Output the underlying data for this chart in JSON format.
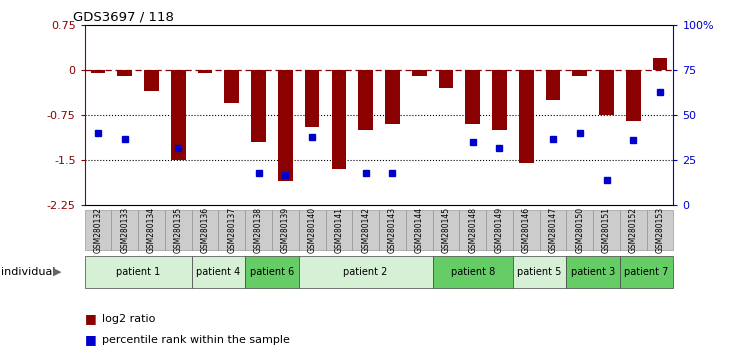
{
  "title": "GDS3697 / 118",
  "samples": [
    "GSM280132",
    "GSM280133",
    "GSM280134",
    "GSM280135",
    "GSM280136",
    "GSM280137",
    "GSM280138",
    "GSM280139",
    "GSM280140",
    "GSM280141",
    "GSM280142",
    "GSM280143",
    "GSM280144",
    "GSM280145",
    "GSM280148",
    "GSM280149",
    "GSM280146",
    "GSM280147",
    "GSM280150",
    "GSM280151",
    "GSM280152",
    "GSM280153"
  ],
  "log2_ratio": [
    -0.05,
    -0.1,
    -0.35,
    -1.5,
    -0.05,
    -0.55,
    -1.2,
    -1.85,
    -0.95,
    -1.65,
    -1.0,
    -0.9,
    -0.1,
    -0.3,
    -0.9,
    -1.0,
    -1.55,
    -0.5,
    -0.1,
    -0.75,
    -0.85,
    0.2
  ],
  "percentile": [
    40,
    37,
    null,
    32,
    null,
    null,
    18,
    17,
    38,
    null,
    18,
    18,
    null,
    null,
    35,
    32,
    null,
    37,
    40,
    14,
    36,
    63
  ],
  "ylim_left": [
    -2.25,
    0.75
  ],
  "ylim_right": [
    0,
    100
  ],
  "yticks_left": [
    0.75,
    0,
    -0.75,
    -1.5,
    -2.25
  ],
  "yticks_right": [
    100,
    75,
    50,
    25,
    0
  ],
  "ytick_labels_right": [
    "100%",
    "75",
    "50",
    "25",
    "0"
  ],
  "hlines_dotted": [
    -0.75,
    -1.5
  ],
  "hline_dashed": 0,
  "bar_color": "#8B0000",
  "dot_color": "#0000CD",
  "patient_groups": [
    {
      "label": "patient 1",
      "start": 0,
      "end": 4,
      "color": "#d6f0d6"
    },
    {
      "label": "patient 4",
      "start": 4,
      "end": 6,
      "color": "#d6f0d6"
    },
    {
      "label": "patient 6",
      "start": 6,
      "end": 8,
      "color": "#66cc66"
    },
    {
      "label": "patient 2",
      "start": 8,
      "end": 13,
      "color": "#d6f0d6"
    },
    {
      "label": "patient 8",
      "start": 13,
      "end": 16,
      "color": "#66cc66"
    },
    {
      "label": "patient 5",
      "start": 16,
      "end": 18,
      "color": "#d6f0d6"
    },
    {
      "label": "patient 3",
      "start": 18,
      "end": 20,
      "color": "#66cc66"
    },
    {
      "label": "patient 7",
      "start": 20,
      "end": 22,
      "color": "#66cc66"
    }
  ],
  "legend_bar_label": "log2 ratio",
  "legend_dot_label": "percentile rank within the sample",
  "individual_label": "individual"
}
